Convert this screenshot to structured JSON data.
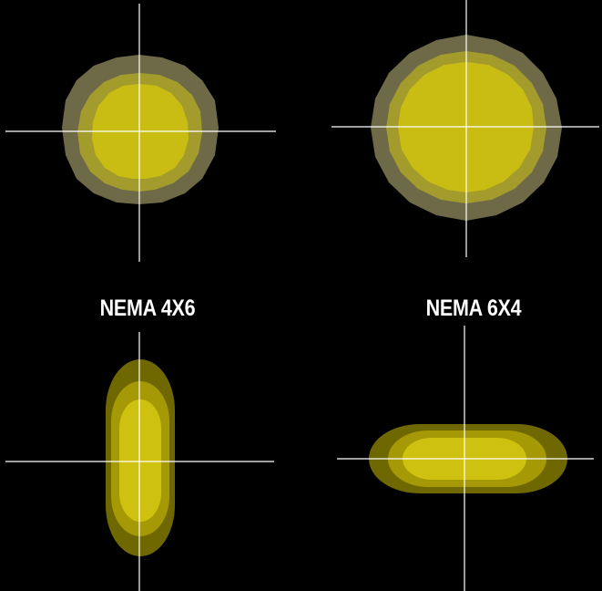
{
  "captions": {
    "left": "NEMA 4X6",
    "right": "NEMA 6X4"
  },
  "colors": {
    "background": "#000000",
    "crosshair": "#ffffff",
    "round_outer": "#6e6a47",
    "round_middle": "#a39c2c",
    "round_inner": "#c9bd14",
    "oval_outer": "#6f6700",
    "oval_middle": "#a59a05",
    "oval_inner": "#cfc10f"
  },
  "beam_patterns": [
    {
      "shape": "round",
      "size": "small"
    },
    {
      "shape": "round",
      "size": "large"
    },
    {
      "shape": "vertical-oval",
      "label_ref": "left"
    },
    {
      "shape": "horizontal-oval",
      "label_ref": "right"
    }
  ]
}
